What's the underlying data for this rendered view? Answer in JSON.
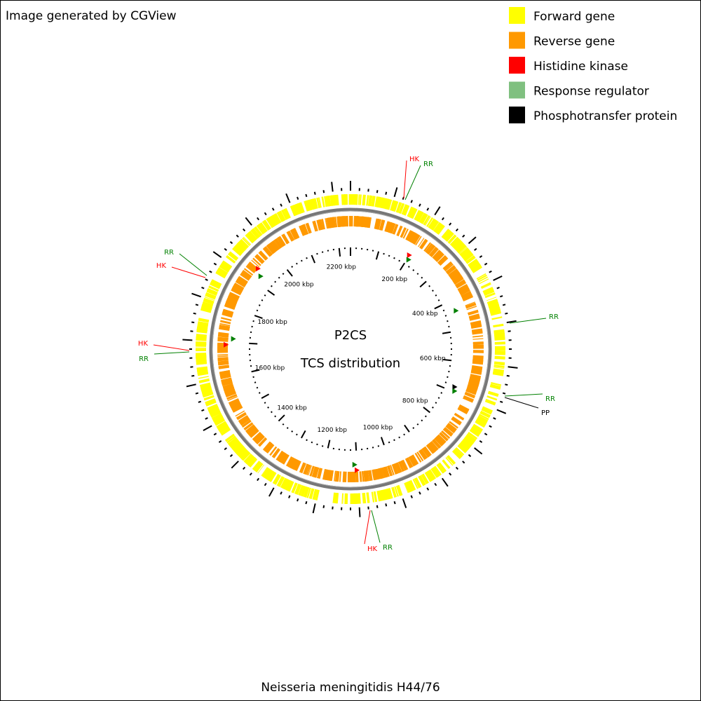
{
  "header": {
    "title": "Image generated by CGView"
  },
  "legend": [
    {
      "label": "Forward gene",
      "color": "#ffff00"
    },
    {
      "label": "Reverse gene",
      "color": "#ff9900"
    },
    {
      "label": "Histidine kinase",
      "color": "#ff0000"
    },
    {
      "label": "Response regulator",
      "color": "#80c080"
    },
    {
      "label": "Phosphotransfer protein",
      "color": "#000000"
    }
  ],
  "map": {
    "title": "P2CS",
    "subtitle": "TCS distribution",
    "ticks": [
      "200 kbp",
      "400 kbp",
      "600 kbp",
      "800 kbp",
      "1000 kbp",
      "1200 kbp",
      "1400 kbp",
      "1600 kbp",
      "1800 kbp",
      "2000 kbp",
      "2200 kbp"
    ],
    "features": [
      {
        "label": "HK",
        "color": "#ff0000"
      },
      {
        "label": "RR",
        "color": "#008000"
      },
      {
        "label": "RR",
        "color": "#008000"
      },
      {
        "label": "RR",
        "color": "#008000"
      },
      {
        "label": "PP",
        "color": "#000000"
      },
      {
        "label": "HK",
        "color": "#ff0000"
      },
      {
        "label": "RR",
        "color": "#008000"
      },
      {
        "label": "HK",
        "color": "#ff0000"
      },
      {
        "label": "RR",
        "color": "#008000"
      },
      {
        "label": "RR",
        "color": "#008000"
      },
      {
        "label": "HK",
        "color": "#ff0000"
      }
    ]
  },
  "footer": {
    "organism": "Neisseria meningitidis H44/76"
  }
}
